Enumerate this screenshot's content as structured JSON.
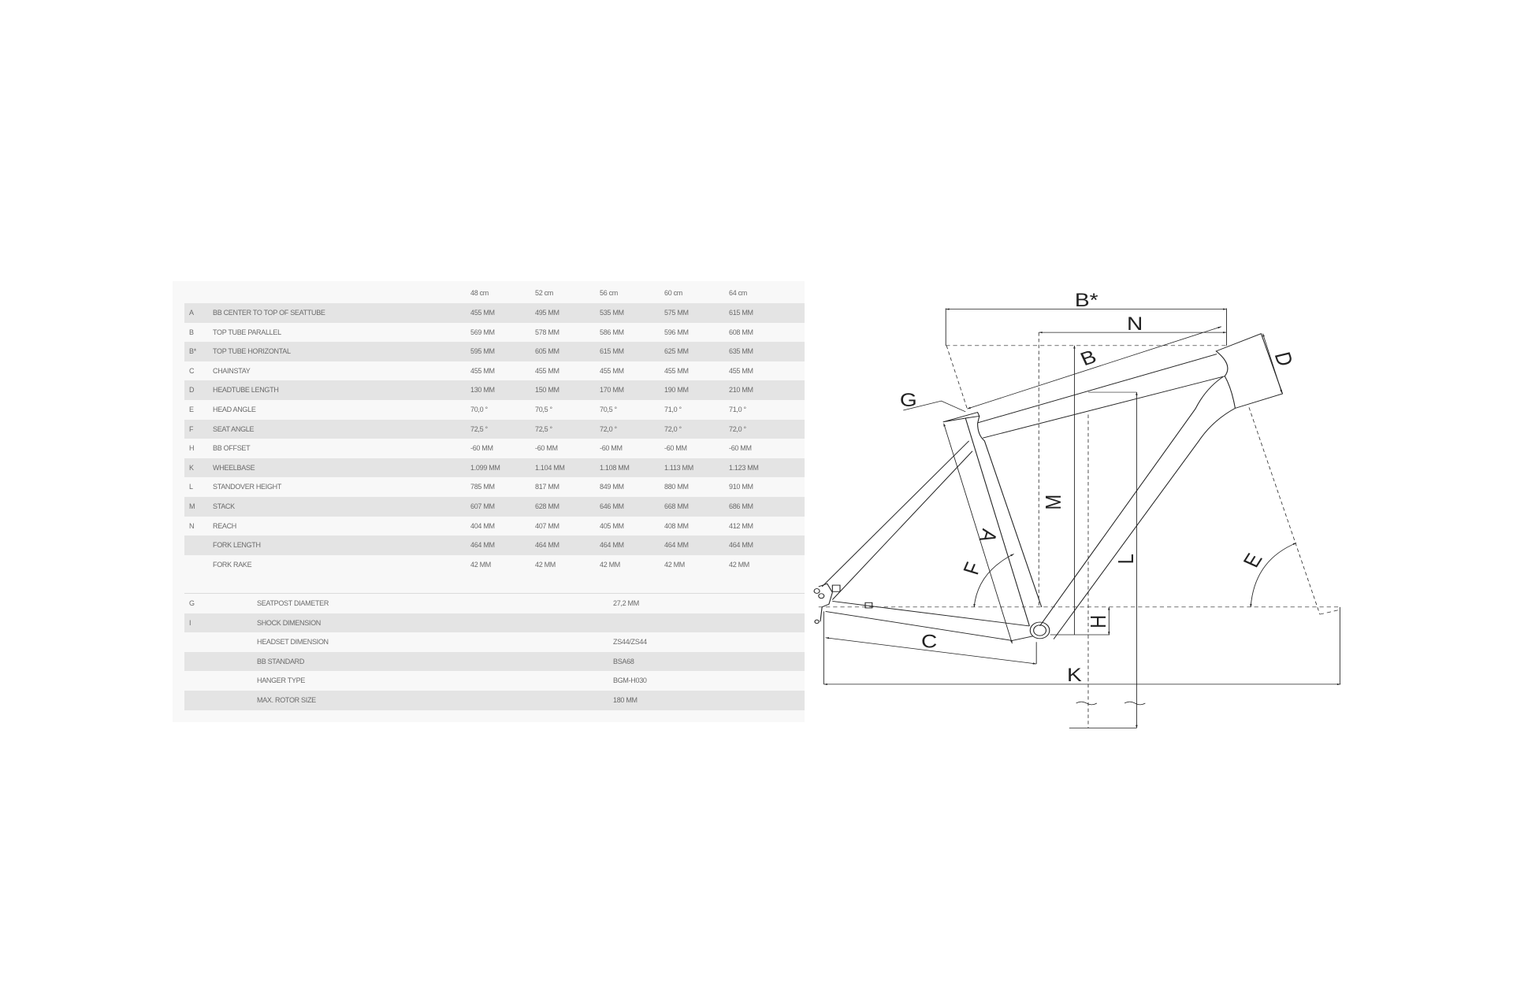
{
  "geometry_table": {
    "size_headers": [
      "48 cm",
      "52 cm",
      "56 cm",
      "60 cm",
      "64 cm"
    ],
    "rows": [
      {
        "code": "A",
        "label": "BB CENTER TO TOP OF SEATTUBE",
        "values": [
          "455 MM",
          "495 MM",
          "535 MM",
          "575 MM",
          "615 MM"
        ]
      },
      {
        "code": "B",
        "label": "TOP TUBE PARALLEL",
        "values": [
          "569 MM",
          "578 MM",
          "586 MM",
          "596 MM",
          "608 MM"
        ]
      },
      {
        "code": "B*",
        "label": "TOP TUBE HORIZONTAL",
        "values": [
          "595 MM",
          "605 MM",
          "615 MM",
          "625 MM",
          "635 MM"
        ]
      },
      {
        "code": "C",
        "label": "CHAINSTAY",
        "values": [
          "455 MM",
          "455 MM",
          "455 MM",
          "455 MM",
          "455 MM"
        ]
      },
      {
        "code": "D",
        "label": "HEADTUBE LENGTH",
        "values": [
          "130 MM",
          "150 MM",
          "170 MM",
          "190 MM",
          "210 MM"
        ]
      },
      {
        "code": "E",
        "label": "HEAD ANGLE",
        "values": [
          "70,0 °",
          "70,5 °",
          "70,5 °",
          "71,0 °",
          "71,0 °"
        ]
      },
      {
        "code": "F",
        "label": "SEAT ANGLE",
        "values": [
          "72,5 °",
          "72,5 °",
          "72,0 °",
          "72,0 °",
          "72,0 °"
        ]
      },
      {
        "code": "H",
        "label": "BB OFFSET",
        "values": [
          "-60 MM",
          "-60 MM",
          "-60 MM",
          "-60 MM",
          "-60 MM"
        ]
      },
      {
        "code": "K",
        "label": "WHEELBASE",
        "values": [
          "1.099 MM",
          "1.104 MM",
          "1.108 MM",
          "1.113 MM",
          "1.123 MM"
        ]
      },
      {
        "code": "L",
        "label": "STANDOVER HEIGHT",
        "values": [
          "785 MM",
          "817 MM",
          "849 MM",
          "880 MM",
          "910 MM"
        ]
      },
      {
        "code": "M",
        "label": "STACK",
        "values": [
          "607 MM",
          "628 MM",
          "646 MM",
          "668 MM",
          "686 MM"
        ]
      },
      {
        "code": "N",
        "label": "REACH",
        "values": [
          "404 MM",
          "407 MM",
          "405 MM",
          "408 MM",
          "412 MM"
        ]
      },
      {
        "code": "",
        "label": "FORK LENGTH",
        "values": [
          "464 MM",
          "464 MM",
          "464 MM",
          "464 MM",
          "464 MM"
        ]
      },
      {
        "code": "",
        "label": "FORK RAKE",
        "values": [
          "42 MM",
          "42 MM",
          "42 MM",
          "42 MM",
          "42 MM"
        ]
      }
    ]
  },
  "component_table": {
    "rows": [
      {
        "code": "G",
        "label": "SEATPOST DIAMETER",
        "value": "27,2 MM"
      },
      {
        "code": "I",
        "label": "SHOCK DIMENSION",
        "value": ""
      },
      {
        "code": "",
        "label": "HEADSET DIMENSION",
        "value": "ZS44/ZS44"
      },
      {
        "code": "",
        "label": "BB STANDARD",
        "value": "BSA68"
      },
      {
        "code": "",
        "label": "HANGER TYPE",
        "value": "BGM-H030"
      },
      {
        "code": "",
        "label": "MAX. ROTOR SIZE",
        "value": "180 MM"
      }
    ]
  },
  "diagram": {
    "labels": {
      "b_star": "B*",
      "n": "N",
      "b": "B",
      "d": "D",
      "g": "G",
      "a": "A",
      "m": "M",
      "l": "L",
      "f": "F",
      "e": "E",
      "h": "H",
      "c": "C",
      "k": "K"
    },
    "line_color": "#222222"
  },
  "colors": {
    "panel_bg": "#f8f8f8",
    "stripe": "#e4e4e4",
    "text": "#6a6a6a"
  }
}
